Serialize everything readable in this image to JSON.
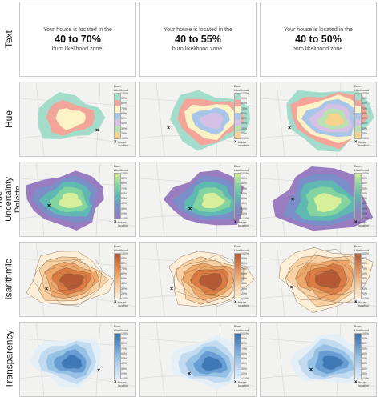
{
  "rows": [
    "Text",
    "Hue",
    "Hue Uncertainty Palette",
    "Isarithmic",
    "Transparency"
  ],
  "text_condition": [
    {
      "pre": "Your house is located in the",
      "range": "40 to 70%",
      "post": "burn likelihood zone."
    },
    {
      "pre": "Your house is located in the",
      "range": "40 to 55%",
      "post": "burn likelihood zone."
    },
    {
      "pre": "Your house is located in the",
      "range": "40 to 50%",
      "post": "burn likelihood zone."
    }
  ],
  "legend": {
    "title_line1": "Burn",
    "title_line2": "Likelihood",
    "ticks": [
      "100%",
      "90%",
      "80%",
      "70%",
      "60%",
      "50%",
      "40%",
      "30%",
      "20%",
      "<10%"
    ],
    "house_line1": "House",
    "house_line2": "location",
    "house_marker": "×"
  },
  "colors": {
    "hue": [
      "#a3dccb",
      "#f4a59a",
      "#fbf3c6",
      "#a9c6e8",
      "#d6c0e6",
      "#b8e2b2",
      "#f6d28a"
    ],
    "palette": [
      "#9a7cc0",
      "#7a8fc8",
      "#5fb8b2",
      "#84d4a0",
      "#d7ee9a"
    ],
    "isarithmic": [
      "#fdeed8",
      "#f7d1a3",
      "#eea86c",
      "#dc7c45",
      "#b65a35"
    ],
    "transparency": [
      "#e2eef8",
      "#bcd7ef",
      "#8fbde4",
      "#5e96cf",
      "#3a72b0"
    ]
  }
}
